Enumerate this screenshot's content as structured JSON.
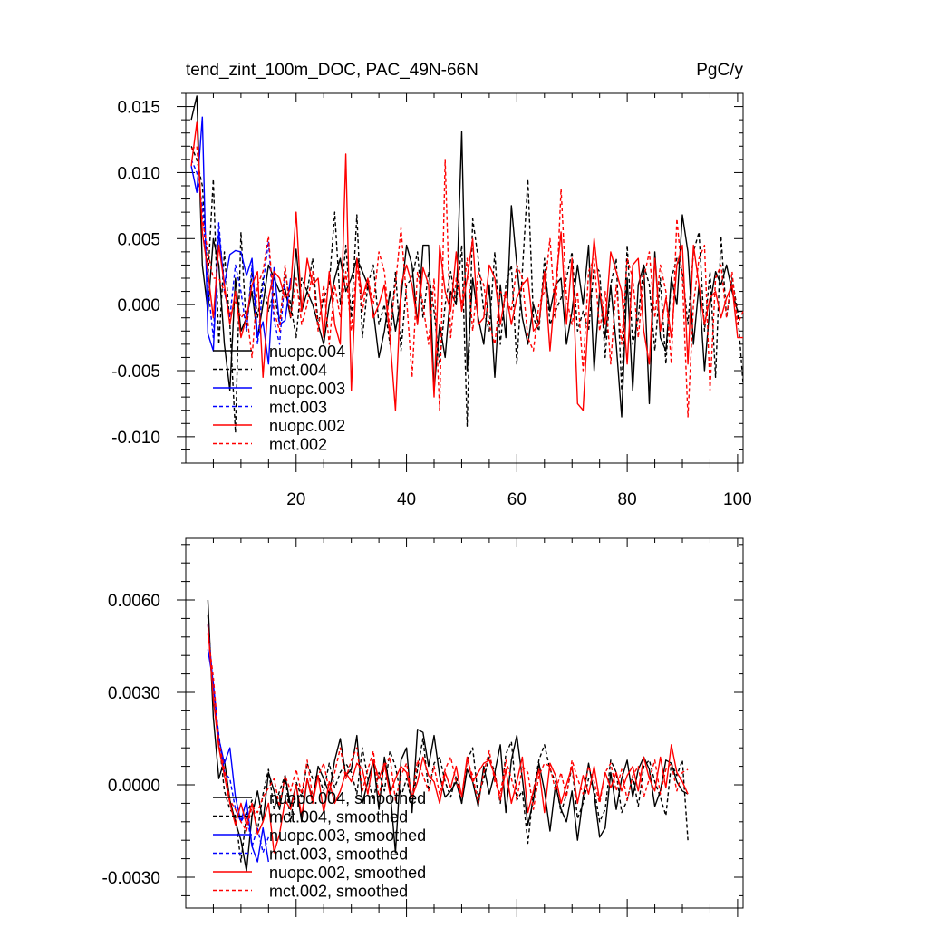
{
  "header": {
    "title": "tend_zint_100m_DOC, PAC_49N-66N",
    "units": "PgC/y"
  },
  "chart_data": [
    {
      "type": "line",
      "title": "tend_zint_100m_DOC, PAC_49N-66N",
      "units_label": "PgC/y",
      "xlim": [
        0,
        101
      ],
      "ylim": [
        -0.012,
        0.016
      ],
      "x_ticks": [
        20,
        40,
        60,
        80,
        100
      ],
      "x_tick_labels": [
        "20",
        "40",
        "60",
        "80",
        "100"
      ],
      "y_ticks": [
        -0.01,
        -0.005,
        0.0,
        0.005,
        0.01,
        0.015
      ],
      "y_tick_labels": [
        "-0.010",
        "-0.005",
        "0.000",
        "0.005",
        "0.010",
        "0.015"
      ],
      "grid": false,
      "legend_position": "bottom-left",
      "series": [
        {
          "name": "nuopc.004",
          "color": "#000000",
          "dash": "solid",
          "x_start": 1,
          "values": [
            0.014,
            0.0158,
            0.003,
            -0.0005,
            0.005,
            0.003,
            -0.003,
            -0.0065,
            0.002,
            -0.002,
            -0.001,
            0.001,
            -0.0025,
            0.0,
            0.003,
            0.002,
            0.001,
            0.0012,
            -0.001,
            0.0042,
            -0.0005,
            0.001,
            0.0,
            -0.0015,
            -0.003,
            0.0,
            0.002,
            0.0035,
            0.001,
            0.002,
            0.0035,
            0.0025,
            0.0015,
            -0.0005,
            -0.004,
            -0.002,
            0.001,
            -0.002,
            0.0005,
            0.0045,
            0.003,
            -0.0015,
            0.0045,
            0.0045,
            -0.0065,
            -0.0015,
            -0.004,
            0.001,
            0.0,
            0.0131,
            -0.005,
            0.002,
            -0.001,
            -0.003,
            0.0015,
            -0.0055,
            0.0015,
            -0.0025,
            0.0075,
            0.003,
            -0.001,
            -0.003,
            0.0,
            -0.0015,
            0.0025,
            -0.0005,
            0.0015,
            0.002,
            -0.003,
            -0.0005,
            0.003,
            0.0,
            0.0045,
            -0.005,
            0.001,
            -0.0025,
            0.0015,
            -0.003,
            -0.0085,
            0.002,
            -0.0065,
            0.0015,
            0.003,
            -0.0075,
            0.004,
            -0.0025,
            -0.0035,
            0.002,
            0.0,
            0.0068,
            0.004,
            -0.003,
            0.0015,
            -0.005,
            0.0,
            0.0025,
            0.0015,
            0.003,
            0.001,
            -0.0005,
            -0.0005
          ]
        },
        {
          "name": "mct.004",
          "color": "#000000",
          "dash": "dashed",
          "x_start": 1,
          "values": [
            0.012,
            0.011,
            0.009,
            0.002,
            0.0095,
            -0.003,
            0.004,
            -0.0015,
            -0.0097,
            0.0055,
            -0.002,
            0.0025,
            -0.001,
            0.002,
            -0.0005,
            0.001,
            -0.0015,
            0.0025,
            0.0,
            -0.0025,
            0.002,
            0.001,
            0.0035,
            -0.0015,
            0.0005,
            0.0015,
            0.007,
            0.0,
            0.0045,
            -0.001,
            0.0068,
            -0.0025,
            0.0015,
            0.003,
            -0.0015,
            0.0,
            -0.003,
            0.0025,
            -0.0035,
            0.0015,
            0.002,
            0.004,
            -0.001,
            0.0025,
            -0.0005,
            -0.0045,
            0.0,
            0.0025,
            0.0,
            0.0045,
            -0.0092,
            0.0065,
            0.0035,
            -0.0005,
            -0.002,
            0.004,
            -0.003,
            0.0015,
            0.003,
            -0.0045,
            0.0025,
            0.0095,
            -0.001,
            -0.002,
            0.0035,
            -0.0015,
            -0.0005,
            0.0005,
            0.002,
            0.004,
            -0.002,
            -0.0005,
            -0.002,
            0.003,
            0.0025,
            -0.004,
            0.0015,
            0.0035,
            -0.0065,
            0.0045,
            -0.003,
            -0.001,
            0.003,
            0.0015,
            -0.0035,
            0.002,
            -0.0045,
            0.002,
            0.0035,
            0.0025,
            -0.0015,
            0.004,
            0.0055,
            -0.002,
            0.0025,
            -0.0055,
            0.0052,
            -0.001,
            0.002,
            -0.0005,
            -0.006
          ]
        },
        {
          "name": "nuopc.003",
          "color": "#0000ff",
          "dash": "solid",
          "x_start": 1,
          "values": [
            0.0105,
            0.0085,
            0.0142,
            -0.0022,
            -0.0035,
            0.0055,
            0.0015,
            0.0038,
            0.0041,
            0.004,
            0.0022,
            0.0035,
            -0.0025,
            -0.0013,
            -0.0045,
            0.0028,
            -0.0015,
            -0.0012,
            0.002
          ]
        },
        {
          "name": "mct.003",
          "color": "#0000ff",
          "dash": "dashed",
          "x_start": 1,
          "values": [
            0.011,
            0.01,
            0.0075,
            0.0015,
            -0.0025,
            0.0062,
            0.001,
            -0.001,
            0.003,
            0.001,
            -0.002,
            0.003,
            -0.003,
            0.0015,
            0.0048,
            -0.0012,
            -0.003,
            0.0022
          ]
        },
        {
          "name": "nuopc.002",
          "color": "#ff0000",
          "dash": "solid",
          "x_start": 1,
          "values": [
            0.0105,
            0.0138,
            0.0055,
            0.0025,
            -0.001,
            0.0045,
            0.0015,
            -0.0015,
            0.001,
            -0.0025,
            -0.001,
            0.0015,
            0.0025,
            -0.0055,
            0.0005,
            0.0025,
            0.002,
            0.0005,
            0.0012,
            0.007,
            -0.0005,
            0.0035,
            0.0015,
            0.002,
            -0.0025,
            0.0025,
            -0.0015,
            -0.003,
            0.0114,
            -0.0065,
            0.0035,
            0.0005,
            0.002,
            -0.001,
            0.0,
            0.0015,
            -0.0025,
            -0.008,
            0.0015,
            0.003,
            0.0015,
            -0.0015,
            0.0028,
            0.0015,
            -0.007,
            0.0045,
            0.001,
            -0.0005,
            0.004,
            -0.0005,
            0.002,
            0.005,
            -0.0015,
            -0.001,
            0.003,
            0.002,
            -0.0015,
            0.001,
            -0.0015,
            0.0005,
            0.0015,
            0.002,
            -0.002,
            -0.0015,
            0.0025,
            -0.0035,
            0.0015,
            0.0055,
            -0.0015,
            0.0035,
            -0.0075,
            -0.008,
            -0.0005,
            0.005,
            0.001,
            -0.0015,
            0.004,
            0.0025,
            0.001,
            -0.0045,
            0.003,
            0.0035,
            -0.002,
            -0.0045,
            0.0035,
            -0.002,
            0.0005,
            -0.0025,
            0.003,
            0.0045,
            -0.0045,
            0.0045,
            0.0015,
            -0.0015,
            0.0005,
            0.001,
            -0.001,
            0.0005,
            0.0015,
            -0.0025,
            -0.0025
          ]
        },
        {
          "name": "mct.002",
          "color": "#ff0000",
          "dash": "dashed",
          "x_start": 1,
          "values": [
            0.0118,
            0.012,
            0.0065,
            0.004,
            0.002,
            0.002,
            0.001,
            -0.0008,
            0.0002,
            -0.001,
            -0.0005,
            -0.004,
            0.0015,
            0.0025,
            0.0052,
            -0.0005,
            -0.002,
            0.003,
            -0.001,
            0.002,
            -0.0015,
            0.0,
            0.0025,
            -0.002,
            0.0015,
            -0.003,
            0.0015,
            -0.001,
            0.0025,
            -0.002,
            0.003,
            -0.0005,
            0.002,
            0.0,
            0.004,
            0.0025,
            -0.002,
            0.0015,
            0.0058,
            0.0005,
            -0.0055,
            0.0025,
            0.0,
            -0.003,
            0.002,
            -0.008,
            0.011,
            -0.0025,
            0.002,
            0.0,
            0.0035,
            -0.002,
            0.0025,
            0.0015,
            -0.0015,
            -0.003,
            0.001,
            0.0005,
            -0.0005,
            0.003,
            0.002,
            -0.0025,
            -0.0035,
            0.0,
            0.001,
            0.005,
            -0.001,
            0.0088,
            0.0005,
            -0.0015,
            0.001,
            -0.005,
            0.0025,
            0.0035,
            -0.002,
            0.001,
            -0.0045,
            0.0015,
            -0.003,
            0.0035,
            0.002,
            -0.0025,
            0.002,
            0.004,
            -0.001,
            0.003,
            0.001,
            -0.0045,
            0.0065,
            0.002,
            -0.0085,
            0.0,
            0.0035,
            0.0045,
            -0.0065,
            0.002,
            0.003,
            -0.001,
            0.0025,
            -0.0015,
            -0.0005
          ]
        }
      ]
    },
    {
      "type": "line",
      "title": "",
      "xlim": [
        0,
        101
      ],
      "ylim": [
        -0.004,
        0.008
      ],
      "x_ticks": [
        20,
        40,
        60,
        80,
        100
      ],
      "x_tick_labels": [],
      "y_ticks": [
        -0.003,
        0.0,
        0.003,
        0.006
      ],
      "y_tick_labels": [
        "-0.0030",
        "0.0000",
        "0.0030",
        "0.0060"
      ],
      "grid": false,
      "legend_position": "bottom-left",
      "series": [
        {
          "name": "nuopc.004, smoothed",
          "color": "#000000",
          "dash": "solid",
          "x_start": 4,
          "values": [
            0.006,
            0.0022,
            0.0002,
            0.0008,
            -0.0005,
            -0.0012,
            -0.0018,
            -0.0028,
            -0.001,
            -0.0002,
            -0.0012,
            0.0004,
            -0.0002,
            -0.0008,
            0.0003,
            -0.0007,
            0.0,
            -0.0012,
            0.0002,
            -0.0005,
            0.0006,
            0.0002,
            -0.0003,
            0.0008,
            0.0015,
            0.0003,
            0.0005,
            0.0016,
            -0.0006,
            0.0001,
            0.0008,
            -0.0008,
            0.0009,
            -0.0001,
            -0.0022,
            0.0008,
            0.0012,
            -0.0009,
            0.0018,
            0.0017,
            0.0006,
            0.0016,
            0.0003,
            -0.0004,
            -0.0002,
            0.0001,
            -0.0006,
            0.0005,
            0.0001,
            -0.0007,
            0.0006,
            -0.0003,
            0.0004,
            0.0013,
            -0.0009,
            0.0008,
            0.0016,
            0.0002,
            -0.0013,
            -0.0005,
            0.0007,
            -0.0002,
            -0.0015,
            0.0,
            -0.0008,
            -0.0012,
            -0.0002,
            -0.0018,
            -0.0004,
            0.0007,
            -0.0003,
            -0.0017,
            -0.0014,
            0.0004,
            -0.0008,
            0.0002,
            0.0008,
            -0.0004,
            0.0005,
            0.0009,
            0.0005,
            -0.0007,
            -0.0002,
            0.0008,
            0.0007,
            0.0001,
            -0.0002,
            -0.0003
          ]
        },
        {
          "name": "mct.004, smoothed",
          "color": "#000000",
          "dash": "dashed",
          "x_start": 4,
          "values": [
            0.0055,
            0.0028,
            0.0015,
            -0.0002,
            -0.0008,
            -0.001,
            -0.0025,
            -0.001,
            -0.0005,
            -0.0015,
            -0.0003,
            0.0005,
            -0.0008,
            -0.0002,
            0.0003,
            -0.0012,
            0.0001,
            -0.0004,
            0.0007,
            0.0002,
            0.0003,
            -0.0002,
            0.0007,
            -0.0001,
            0.0004,
            0.0007,
            0.0004,
            -0.0003,
            0.0012,
            0.0002,
            -0.0005,
            0.0004,
            -0.0002,
            0.0011,
            0.0006,
            -0.0004,
            0.0002,
            -0.0006,
            0.0005,
            0.0015,
            -0.0002,
            0.0007,
            0.0009,
            0.0001,
            -0.0004,
            0.0003,
            -0.0006,
            0.0008,
            0.0012,
            -0.0004,
            0.0002,
            0.0009,
            0.0004,
            -0.0006,
            0.001,
            0.0014,
            -0.0005,
            -0.0002,
            -0.0019,
            -0.0002,
            0.0008,
            0.0013,
            0.0005,
            0.0001,
            -0.0009,
            -0.0003,
            0.0006,
            -0.0011,
            -0.0006,
            0.0002,
            -0.0001,
            -0.0012,
            -0.0008,
            0.0008,
            0.0004,
            -0.0009,
            -0.0005,
            0.0003,
            -0.0007,
            0.0006,
            0.0008,
            0.0001,
            -0.0004,
            -0.001,
            0.0007,
            0.0003,
            0.0008,
            -0.0018
          ]
        },
        {
          "name": "nuopc.003, smoothed",
          "color": "#0000ff",
          "dash": "solid",
          "x_start": 4,
          "values": [
            0.0044,
            0.0033,
            0.0015,
            0.0007,
            0.0012,
            -0.0004,
            -0.0012,
            -0.0005,
            -0.002,
            -0.0025,
            -0.0014,
            -0.0025
          ]
        },
        {
          "name": "mct.003, smoothed",
          "color": "#0000ff",
          "dash": "dashed",
          "x_start": 4,
          "values": [
            0.0052,
            0.0032,
            0.0016,
            0.0004,
            0.0002,
            -0.0008,
            -0.0012,
            -0.0009,
            -0.002,
            -0.0014,
            -0.0022,
            -0.0017
          ]
        },
        {
          "name": "nuopc.002, smoothed",
          "color": "#ff0000",
          "dash": "solid",
          "x_start": 4,
          "values": [
            0.0052,
            0.0028,
            0.0012,
            0.0003,
            -0.0006,
            -0.0013,
            -0.0006,
            -0.0013,
            -0.0006,
            -0.0016,
            -0.0012,
            -0.0006,
            -0.0022,
            -0.0016,
            -0.0005,
            -0.0008,
            0.0,
            -0.001,
            0.0002,
            -0.0006,
            0.0003,
            -0.0009,
            0.0001,
            -0.0006,
            -0.0002,
            0.0004,
            0.0001,
            0.0007,
            0.0005,
            -0.0003,
            0.0008,
            0.0002,
            0.0007,
            -0.0003,
            0.0002,
            0.0006,
            0.0004,
            -0.0004,
            0.0001,
            0.0009,
            0.0003,
            0.0001,
            -0.0006,
            0.0004,
            -0.0001,
            0.0006,
            -0.0004,
            0.0009,
            0.0001,
            0.0004,
            0.0007,
            0.0008,
            0.0003,
            -0.0005,
            0.0005,
            -0.0006,
            0.0001,
            0.0009,
            -0.0009,
            -0.0002,
            0.0005,
            -0.0009,
            0.0007,
            0.0003,
            -0.0006,
            0.0,
            0.0006,
            -0.0006,
            0.0003,
            -0.0003,
            0.0006,
            -0.0005,
            0.0004,
            -0.0001,
            0.0004,
            -0.0002,
            0.0003,
            0.0006,
            -0.0002,
            0.0009,
            0.0002,
            -0.0002,
            0.0009,
            -0.0001,
            0.0013,
            0.0004,
            0.0001,
            -0.0003
          ]
        },
        {
          "name": "mct.002, smoothed",
          "color": "#ff0000",
          "dash": "dashed",
          "x_start": 4,
          "values": [
            0.0049,
            0.0035,
            0.0014,
            0.0005,
            -0.0005,
            -0.0008,
            -0.0012,
            -0.0015,
            -0.0007,
            -0.0009,
            -0.0004,
            -0.0001,
            0.0002,
            -0.0007,
            0.0003,
            -0.0002,
            0.0005,
            -0.0003,
            0.0008,
            -0.0004,
            0.0003,
            0.0007,
            -0.0002,
            0.0004,
            0.0012,
            0.0002,
            0.0008,
            0.0012,
            -0.0002,
            0.0005,
            0.0011,
            -0.0004,
            0.0006,
            0.0009,
            -0.0005,
            0.0003,
            0.0007,
            -0.0004,
            0.0008,
            0.0003,
            -0.0002,
            0.0006,
            -0.0003,
            0.0005,
            0.0009,
            0.0001,
            -0.0004,
            0.0008,
            0.0003,
            -0.0006,
            0.0004,
            0.0011,
            0.0001,
            -0.0003,
            0.0008,
            0.0002,
            -0.0005,
            0.0006,
            0.0004,
            -0.0008,
            0.0003,
            0.0007,
            0.0006,
            -0.0002,
            0.0004,
            -0.0004,
            0.0008,
            0.0002,
            -0.0003,
            0.0006,
            0.0001,
            -0.0006,
            0.0004,
            0.0007,
            -0.0002,
            0.0005,
            -0.0005,
            0.0003,
            0.0006,
            -0.0004,
            0.0002,
            0.0008,
            -0.0003,
            0.0005,
            0.0007,
            -0.0002,
            0.0004,
            0.0005
          ]
        }
      ]
    }
  ]
}
